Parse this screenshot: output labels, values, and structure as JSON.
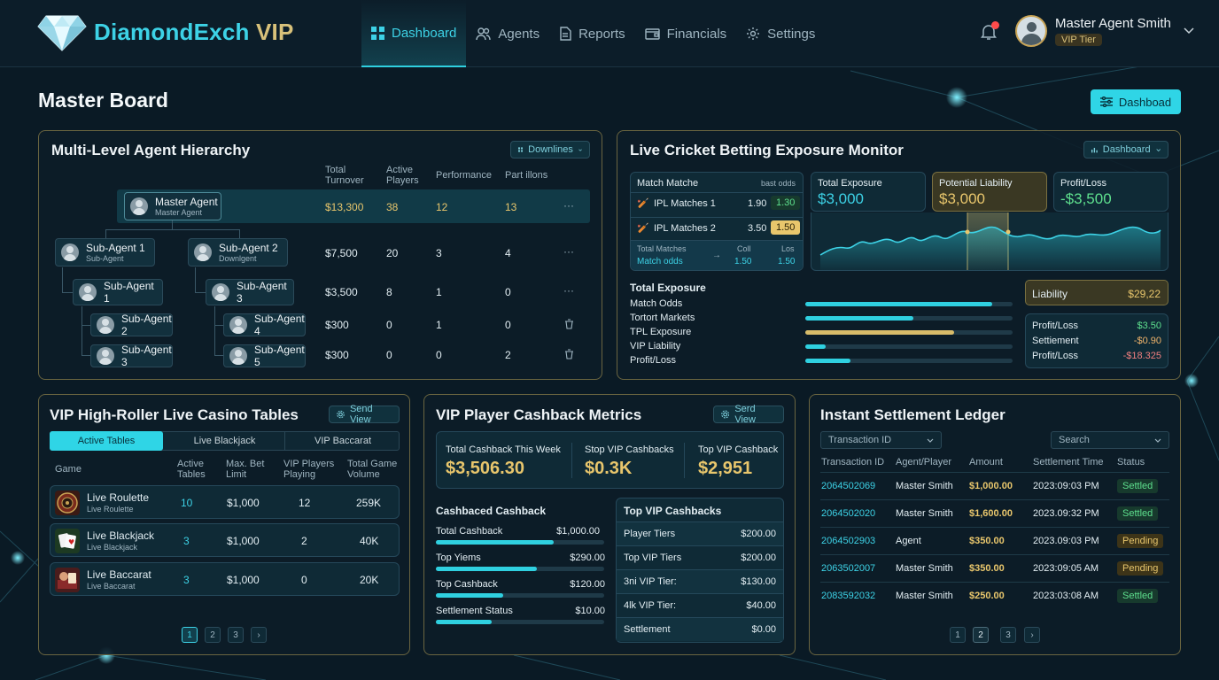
{
  "brand": {
    "part1": "DiamondExch",
    "part2": " VIP"
  },
  "nav": {
    "dashboard": "Dashboard",
    "agents": "Agents",
    "reports": "Reports",
    "financials": "Financials",
    "settings": "Settings"
  },
  "user": {
    "name": "Master Agent Smith",
    "tier": "VIP Tier"
  },
  "page": {
    "title": "Master Board",
    "dashboard_button": "Dashboad"
  },
  "hierarchy": {
    "title": "Multi-Level Agent Hierarchy",
    "dropdown": "Downlines",
    "headers": {
      "turnover": "Total\nTurnover",
      "players": "Active\nPlayers",
      "performance": "Performance",
      "partillons": "Part illons"
    },
    "nodes": [
      {
        "label": "Master Agent",
        "sub": "Master Agent"
      },
      {
        "label": "Sub-Agent 1",
        "sub": "Sub-Agent"
      },
      {
        "label": "Sub-Agent 2",
        "sub": "Downlgent"
      },
      {
        "label": "Sub-Agent 1",
        "sub": ""
      },
      {
        "label": "Sub-Agent 3",
        "sub": ""
      },
      {
        "label": "Sub-Agent 2",
        "sub": ""
      },
      {
        "label": "Sub-Agent 4",
        "sub": ""
      },
      {
        "label": "Sub-Agent 3",
        "sub": ""
      },
      {
        "label": "Sub-Agent 5",
        "sub": ""
      }
    ],
    "rows": [
      {
        "turnover": "$13,300",
        "players": "38",
        "performance": "12",
        "part": "13",
        "action": "···"
      },
      {
        "turnover": "$7,500",
        "players": "20",
        "performance": "3",
        "part": "4",
        "action": "···"
      },
      {
        "turnover": "$3,500",
        "players": "8",
        "performance": "1",
        "part": "0",
        "action": "···"
      },
      {
        "turnover": "$300",
        "players": "0",
        "performance": "1",
        "part": "0"
      },
      {
        "turnover": "$300",
        "players": "0",
        "performance": "0",
        "part": "2"
      }
    ]
  },
  "cricket": {
    "title": "Live Cricket Betting Exposure Monitor",
    "dropdown": "Dashboard",
    "match_header": "Match Matche",
    "match_header_right": "bast odds",
    "matches": [
      {
        "name": "IPL Matches 1",
        "odds": "1.90",
        "best": "1.30"
      },
      {
        "name": "IPL Matches 2",
        "odds": "3.50",
        "best": "1.50"
      }
    ],
    "footer": {
      "l1": "Total Matches",
      "l2": "Match odds",
      "arrow": "→",
      "c1": "Coll",
      "c2": "1.50",
      "r1": "Los",
      "r2": "1.50"
    },
    "kpis": [
      {
        "label": "Total Exposure",
        "value": "$3,000"
      },
      {
        "label": "Potential Liability",
        "value": "$3,000"
      },
      {
        "label": "Profit/Loss",
        "value": "-$3,500"
      }
    ],
    "exposure_title": "Total Exposure",
    "exposure": [
      {
        "label": "Match Odds",
        "pct": 0.9,
        "color": "cyan"
      },
      {
        "label": "Tortort Markets",
        "pct": 0.52,
        "color": "cyan"
      },
      {
        "label": "TPL Exposure",
        "pct": 0.72,
        "color": "gold"
      },
      {
        "label": "VIP Liability",
        "pct": 0.1,
        "color": "cyan"
      },
      {
        "label": "Profit/Loss",
        "pct": 0.22,
        "color": "cyan"
      }
    ],
    "liability": {
      "label": "Liability",
      "value": "$29,22"
    },
    "pl": [
      {
        "label": "Profit/Loss",
        "value": "$3.50"
      },
      {
        "label": "Settiement",
        "value": "-$0.90"
      },
      {
        "label": "Profit/Loss",
        "value": "-$18.325"
      }
    ]
  },
  "casino": {
    "title": "VIP High-Roller Live Casino Tables",
    "button": "Send View",
    "tabs": [
      "Active Tables",
      "Live Blackjack",
      "VIP Baccarat"
    ],
    "headers": {
      "game": "Game",
      "tables": "Active\nTables",
      "maxbet": "Max. Bet\nLimit",
      "vip": "VIP Players\nPlaying",
      "volume": "Total Game\nVolume"
    },
    "rows": [
      {
        "name": "Live Roulette",
        "sub": "Live Roulette",
        "tables": "10",
        "maxbet": "$1,000",
        "vip": "12",
        "volume": "259K"
      },
      {
        "name": "Live Blackjack",
        "sub": "Live Blackjack",
        "tables": "3",
        "maxbet": "$1,000",
        "vip": "2",
        "volume": "40K"
      },
      {
        "name": "Live Baccarat",
        "sub": "Live Baccarat",
        "tables": "3",
        "maxbet": "$1,000",
        "vip": "0",
        "volume": "20K"
      }
    ],
    "pages": [
      "1",
      "2",
      "3",
      "›"
    ]
  },
  "cashback": {
    "title": "VIP Player Cashback Metrics",
    "button": "Serd View",
    "kpis": [
      {
        "label": "Total Cashback This Week",
        "value": "$3,506.30"
      },
      {
        "label": "Stop VIP Cashbacks",
        "value": "$0.3K"
      },
      {
        "label": "Top VIP Cashback",
        "value": "$2,951"
      }
    ],
    "left_title": "Cashbaced Cashback",
    "left": [
      {
        "label": "Total Cashback",
        "value": "$1,000.00",
        "pct": 0.7
      },
      {
        "label": "Top Yiems",
        "value": "$290.00",
        "pct": 0.6
      },
      {
        "label": "Top Cashback",
        "value": "$120.00",
        "pct": 0.4
      },
      {
        "label": "Settlement Status",
        "value": "$10.00",
        "pct": 0.33
      }
    ],
    "right_title": "Top VIP Cashbacks",
    "right": [
      {
        "label": "Player Tiers",
        "value": "$200.00"
      },
      {
        "label": "Top VIP Tiers",
        "value": "$200.00"
      },
      {
        "label": "3ni VIP Tier:",
        "value": "$130.00"
      },
      {
        "label": "4lk VIP Tier:",
        "value": "$40.00"
      },
      {
        "label": "Settlement",
        "value": "$0.00"
      }
    ]
  },
  "ledger": {
    "title": "Instant Settlement Ledger",
    "filter": "Transaction ID",
    "search": "Search",
    "headers": {
      "id": "Transaction ID",
      "agent": "Agent/Player",
      "amount": "Amount",
      "time": "Settlement Time",
      "status": "Status"
    },
    "rows": [
      {
        "id": "2064502069",
        "agent": "Master Smith",
        "amount": "$1,000.00",
        "time": "2023:09:03 PM",
        "status": "Settled"
      },
      {
        "id": "2064502020",
        "agent": "Master Smith",
        "amount": "$1,600.00",
        "time": "2023.09:32 PM",
        "status": "Settled"
      },
      {
        "id": "2064502903",
        "agent": "Agent",
        "amount": "$350.00",
        "time": "2023.09:03 PM",
        "status": "Pending"
      },
      {
        "id": "2063502007",
        "agent": "Master Smith",
        "amount": "$350.00",
        "time": "2023:09:05 AM",
        "status": "Pending"
      },
      {
        "id": "2083592032",
        "agent": "Master Smith",
        "amount": "$250.00",
        "time": "2023:03:08 AM",
        "status": "Settled"
      }
    ],
    "pages": [
      "1",
      "2",
      "3",
      "›"
    ]
  }
}
